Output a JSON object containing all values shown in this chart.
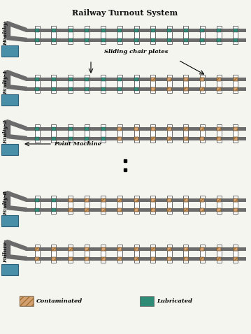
{
  "title": "Railway Turnout System",
  "bg_color": "#f5f5f0",
  "rail_color": "#6b6b6b",
  "sleeper_color": "#ffffff",
  "sleeper_edge": "#555555",
  "lubricated_color": "#2e8b75",
  "contaminated_color": "#d4a070",
  "point_machine_color": "#4a8fa8",
  "point_machine_edge": "#2a607a",
  "n_sleepers": 13,
  "legend_contaminated": "Contaminated",
  "legend_lubricated": "Lubricated",
  "rows": [
    {
      "label": "Healthy",
      "n_lub": 13,
      "n_cont": 0
    },
    {
      "label": "Faulty-1",
      "n_lub": 7,
      "n_cont": 6
    },
    {
      "label": "Faulty-2",
      "n_lub": 5,
      "n_cont": 8
    },
    {
      "label": "Faulty-8",
      "n_lub": 2,
      "n_cont": 11
    },
    {
      "label": "Failure",
      "n_lub": 0,
      "n_cont": 13
    }
  ]
}
